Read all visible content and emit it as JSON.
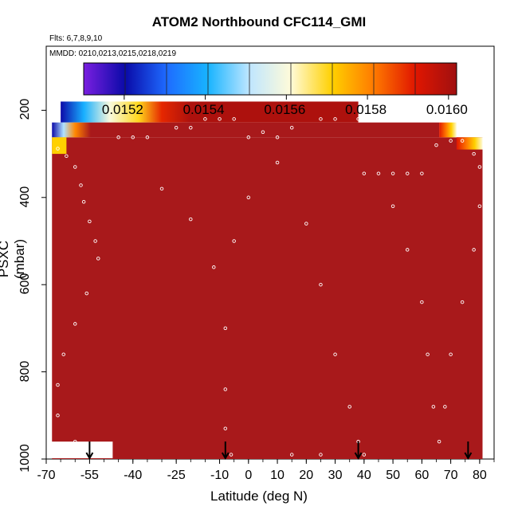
{
  "chart_data": {
    "type": "heatmap",
    "title": "ATOM2 Northbound CFC114_GMI",
    "flights_label": "Flts: 6,7,8,9,10",
    "dates_label": "MMDD: 0210,0213,0215,0218,0219",
    "xlabel": "Latitude (deg N)",
    "ylabel": "PSXC (mbar)",
    "xlim": [
      -70,
      85
    ],
    "ylim": [
      1000,
      140
    ],
    "x_ticks": [
      "-70",
      "-55",
      "-40",
      "-25",
      "-10",
      "0",
      "10",
      "20",
      "30",
      "40",
      "50",
      "60",
      "70",
      "80"
    ],
    "y_ticks": [
      "200",
      "400",
      "600",
      "800",
      "1000"
    ],
    "colorbar": {
      "range": [
        0.0151,
        0.01602
      ],
      "tick_labels": [
        "0.0152",
        "0.0154",
        "0.0156",
        "0.0158",
        "0.0160"
      ],
      "colors": [
        "#7a1fe0",
        "#0a0aa8",
        "#1e6bff",
        "#18b4ff",
        "#bfe6ff",
        "#fffbd9",
        "#ffd000",
        "#ff7a00",
        "#e01600",
        "#a01010"
      ]
    },
    "fill_color": "#a8191b",
    "upper_layer": {
      "lat_range": [
        -65,
        38
      ],
      "pressure_range": [
        180,
        228
      ],
      "gradient_lat": [
        -65,
        -57,
        -48,
        -38,
        -30,
        -20,
        38
      ],
      "gradient_values": [
        0.0152,
        0.0154,
        0.0156,
        0.0157,
        0.0159,
        0.016,
        0.016
      ]
    },
    "flight_track_points": [
      {
        "lat": -66,
        "p": 288
      },
      {
        "lat": -63,
        "p": 305
      },
      {
        "lat": -60,
        "p": 330
      },
      {
        "lat": -58,
        "p": 372
      },
      {
        "lat": -57,
        "p": 410
      },
      {
        "lat": -55,
        "p": 455
      },
      {
        "lat": -53,
        "p": 500
      },
      {
        "lat": -52,
        "p": 540
      },
      {
        "lat": -56,
        "p": 620
      },
      {
        "lat": -60,
        "p": 690
      },
      {
        "lat": -64,
        "p": 760
      },
      {
        "lat": -66,
        "p": 830
      },
      {
        "lat": -66,
        "p": 900
      },
      {
        "lat": -60,
        "p": 960
      },
      {
        "lat": -45,
        "p": 262
      },
      {
        "lat": -40,
        "p": 262
      },
      {
        "lat": -35,
        "p": 262
      },
      {
        "lat": -25,
        "p": 240
      },
      {
        "lat": -20,
        "p": 240
      },
      {
        "lat": -15,
        "p": 220
      },
      {
        "lat": -10,
        "p": 220
      },
      {
        "lat": -5,
        "p": 220
      },
      {
        "lat": 0,
        "p": 262
      },
      {
        "lat": 5,
        "p": 250
      },
      {
        "lat": 10,
        "p": 262
      },
      {
        "lat": 15,
        "p": 240
      },
      {
        "lat": 25,
        "p": 220
      },
      {
        "lat": 30,
        "p": 220
      },
      {
        "lat": 38,
        "p": 220
      },
      {
        "lat": 40,
        "p": 345
      },
      {
        "lat": 45,
        "p": 345
      },
      {
        "lat": 50,
        "p": 345
      },
      {
        "lat": 55,
        "p": 345
      },
      {
        "lat": 60,
        "p": 345
      },
      {
        "lat": 65,
        "p": 280
      },
      {
        "lat": 70,
        "p": 270
      },
      {
        "lat": 74,
        "p": 270
      },
      {
        "lat": 78,
        "p": 300
      },
      {
        "lat": 80,
        "p": 330
      },
      {
        "lat": 80,
        "p": 420
      },
      {
        "lat": 78,
        "p": 520
      },
      {
        "lat": 74,
        "p": 640
      },
      {
        "lat": 70,
        "p": 760
      },
      {
        "lat": 68,
        "p": 880
      },
      {
        "lat": 66,
        "p": 960
      },
      {
        "lat": -30,
        "p": 380
      },
      {
        "lat": -20,
        "p": 450
      },
      {
        "lat": -12,
        "p": 560
      },
      {
        "lat": -8,
        "p": 700
      },
      {
        "lat": -8,
        "p": 840
      },
      {
        "lat": -8,
        "p": 930
      },
      {
        "lat": -6,
        "p": 990
      },
      {
        "lat": 20,
        "p": 460
      },
      {
        "lat": 25,
        "p": 600
      },
      {
        "lat": 30,
        "p": 760
      },
      {
        "lat": 35,
        "p": 880
      },
      {
        "lat": 38,
        "p": 960
      },
      {
        "lat": 40,
        "p": 990
      },
      {
        "lat": 10,
        "p": 320
      },
      {
        "lat": 0,
        "p": 400
      },
      {
        "lat": -5,
        "p": 500
      },
      {
        "lat": 50,
        "p": 420
      },
      {
        "lat": 55,
        "p": 520
      },
      {
        "lat": 60,
        "p": 640
      },
      {
        "lat": 62,
        "p": 760
      },
      {
        "lat": 64,
        "p": 880
      },
      {
        "lat": 15,
        "p": 990
      },
      {
        "lat": 25,
        "p": 990
      }
    ],
    "markers": [
      {
        "lat": -55
      },
      {
        "lat": -8
      },
      {
        "lat": 38
      },
      {
        "lat": 76
      }
    ],
    "white_block": {
      "lat_range": [
        -70,
        -47
      ],
      "pressure_range": [
        960,
        1000
      ]
    }
  }
}
